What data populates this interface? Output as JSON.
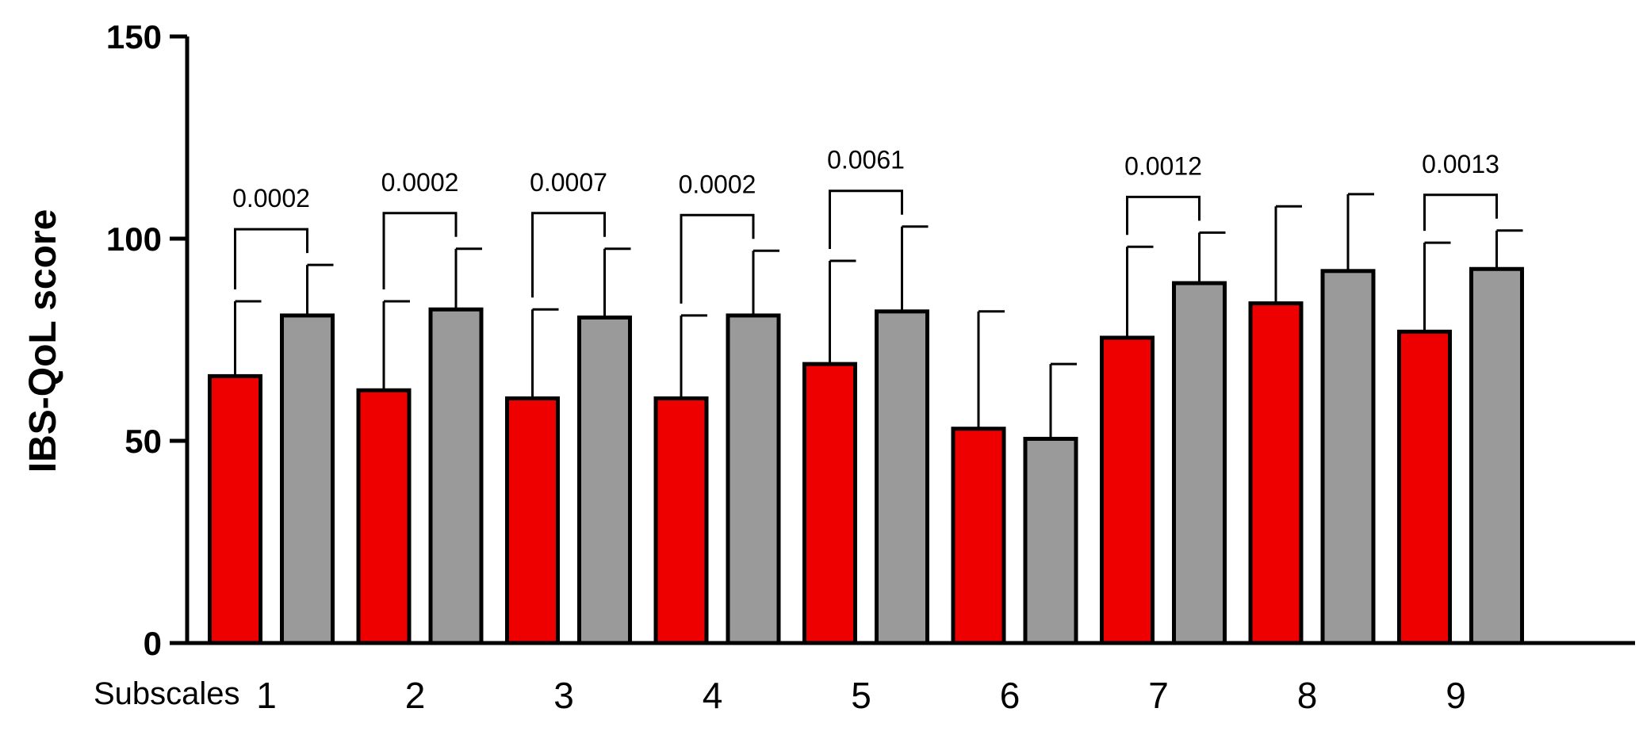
{
  "chart_data": {
    "type": "bar",
    "ylabel": "IBS-QoL  score",
    "xlabel_prefix": "Subscales",
    "ylim": [
      0,
      150
    ],
    "yticks": [
      0,
      50,
      100,
      150
    ],
    "categories": [
      "1",
      "2",
      "3",
      "4",
      "5",
      "6",
      "7",
      "8",
      "9"
    ],
    "series": [
      {
        "color": "#ee0000",
        "values": [
          66,
          62.5,
          60.5,
          60.5,
          69,
          53,
          75.5,
          84,
          77
        ],
        "errors": [
          18.5,
          22,
          22,
          20.5,
          25.5,
          29,
          22.5,
          24,
          22
        ]
      },
      {
        "color": "#9a9a9a",
        "values": [
          81,
          82.5,
          80.5,
          81,
          82,
          50.5,
          89,
          92,
          92.5
        ],
        "errors": [
          12.5,
          15,
          17,
          16,
          21,
          18.5,
          12.5,
          19,
          9.5
        ]
      }
    ],
    "pvalues": [
      "0.0002",
      "0.0002",
      "0.0007",
      "0.0002",
      "0.0061",
      "",
      "0.0012",
      "",
      "0.0013"
    ],
    "grid": false
  }
}
